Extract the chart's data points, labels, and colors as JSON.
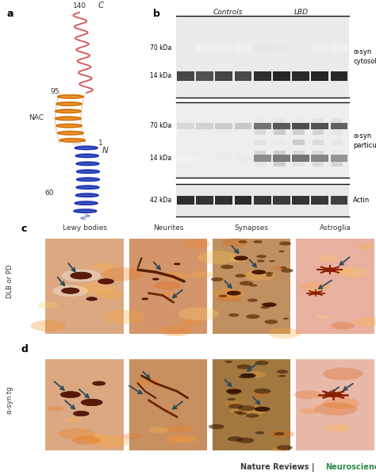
{
  "bg_color": "#ffffff",
  "panel_a_label": "a",
  "panel_b_label": "b",
  "panel_c_label": "c",
  "panel_d_label": "d",
  "footer_text1": "Nature Reviews",
  "footer_text2": "Neuroscience",
  "footer_color1": "#3a3a3a",
  "footer_color2": "#2e8b4a",
  "panel_b_controls": "Controls",
  "panel_b_lbd": "LBD",
  "panel_b_70kda1": "70 kDa",
  "panel_b_14kda1": "14 kDa",
  "panel_b_70kda2": "70 kDa",
  "panel_b_14kda2": "14 kDa",
  "panel_b_42kda": "42 kDa",
  "panel_b_label1": "α-syn\ncytosolic",
  "panel_b_label2": "α-syn\nparticulate",
  "panel_b_label3": "Actin",
  "panel_c_labels": [
    "Lewy bodies",
    "Neurites",
    "Synapses",
    "Astroglia"
  ],
  "panel_c_rowlabel": "DLB or PD",
  "panel_d_rowlabel": "α-syn tg",
  "N_term_color": "#2233aa",
  "NAC_color": "#cc7700",
  "C_term_color": "#cc4444"
}
